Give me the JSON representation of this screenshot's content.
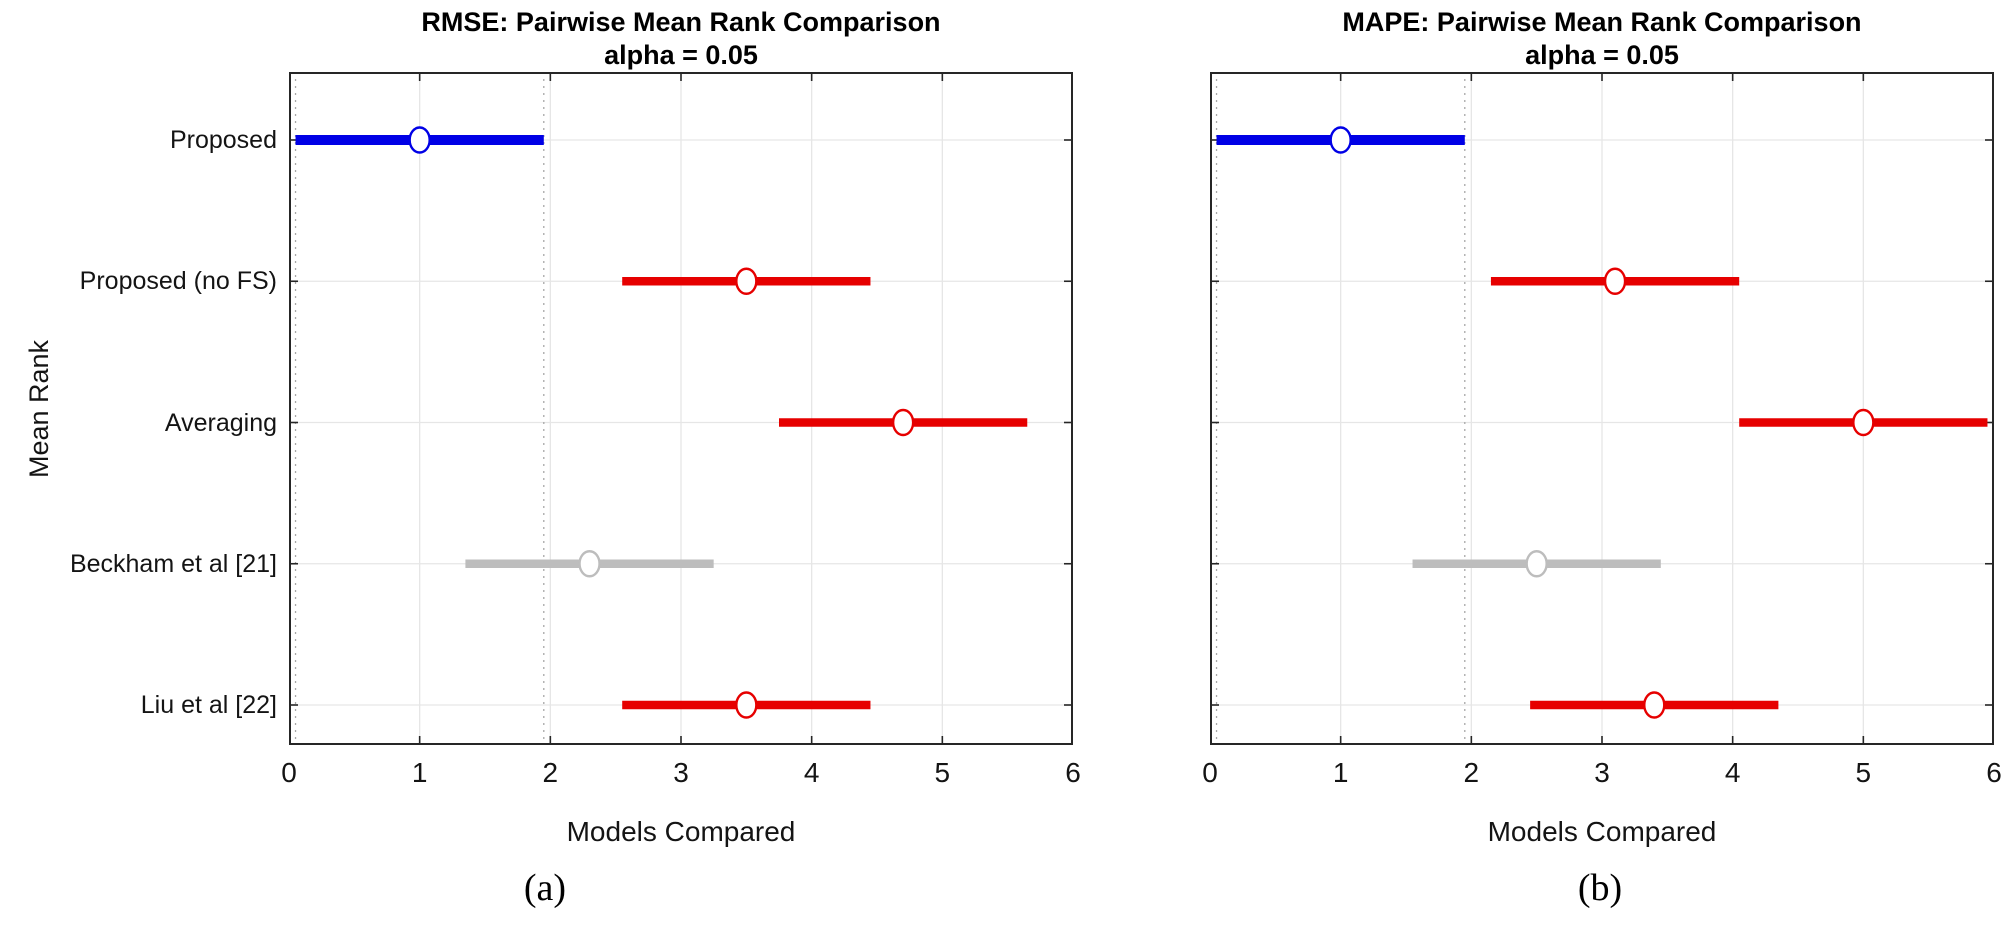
{
  "figure": {
    "background": "#ffffff",
    "kind": "pairwise-mean-rank-comparison-figure"
  },
  "colors": {
    "selected": "#0000e6",
    "different": "#e60000",
    "not_different": "#bdbdbd",
    "grid": "#e6e6e6",
    "ref_line": "#a8a8a8",
    "axis": "#262626",
    "marker_fill": "#ffffff"
  },
  "chart_data": [
    {
      "type": "scatter",
      "subtype": "mean-rank-interval-comparison",
      "title": "RMSE: Pairwise Mean Rank Comparison",
      "subtitle": "alpha = 0.05",
      "xlabel": "Models Compared",
      "ylabel": "Mean Rank",
      "caption": "(a)",
      "xlim": [
        0,
        6
      ],
      "xticks": [
        0,
        1,
        2,
        3,
        4,
        5,
        6
      ],
      "grid": true,
      "show_ytick_labels": true,
      "reference_lines": [
        0.05,
        1.95
      ],
      "categories": [
        "Proposed",
        "Proposed (no FS)",
        "Averaging",
        "Beckham et al [21]",
        "Liu et al [22]"
      ],
      "points": [
        {
          "label": "Proposed",
          "center": 1.0,
          "lower": 0.05,
          "upper": 1.95,
          "color_key": "selected"
        },
        {
          "label": "Proposed (no FS)",
          "center": 3.5,
          "lower": 2.55,
          "upper": 4.45,
          "color_key": "different"
        },
        {
          "label": "Averaging",
          "center": 4.7,
          "lower": 3.75,
          "upper": 5.65,
          "color_key": "different"
        },
        {
          "label": "Beckham et al [21]",
          "center": 2.3,
          "lower": 1.35,
          "upper": 3.25,
          "color_key": "not_different"
        },
        {
          "label": "Liu et al [22]",
          "center": 3.5,
          "lower": 2.55,
          "upper": 4.45,
          "color_key": "different"
        }
      ]
    },
    {
      "type": "scatter",
      "subtype": "mean-rank-interval-comparison",
      "title": "MAPE: Pairwise Mean Rank Comparison",
      "subtitle": "alpha = 0.05",
      "xlabel": "Models Compared",
      "ylabel": "",
      "caption": "(b)",
      "xlim": [
        0,
        6
      ],
      "xticks": [
        0,
        1,
        2,
        3,
        4,
        5,
        6
      ],
      "grid": true,
      "show_ytick_labels": false,
      "reference_lines": [
        0.05,
        1.95
      ],
      "categories": [
        "Proposed",
        "Proposed (no FS)",
        "Averaging",
        "Beckham et al [21]",
        "Liu et al [22]"
      ],
      "points": [
        {
          "label": "Proposed",
          "center": 1.0,
          "lower": 0.05,
          "upper": 1.95,
          "color_key": "selected"
        },
        {
          "label": "Proposed (no FS)",
          "center": 3.1,
          "lower": 2.15,
          "upper": 4.05,
          "color_key": "different"
        },
        {
          "label": "Averaging",
          "center": 5.0,
          "lower": 4.05,
          "upper": 5.95,
          "color_key": "different"
        },
        {
          "label": "Beckham et al [21]",
          "center": 2.5,
          "lower": 1.55,
          "upper": 3.45,
          "color_key": "not_different"
        },
        {
          "label": "Liu et al [22]",
          "center": 3.4,
          "lower": 2.45,
          "upper": 4.35,
          "color_key": "different"
        }
      ]
    }
  ]
}
